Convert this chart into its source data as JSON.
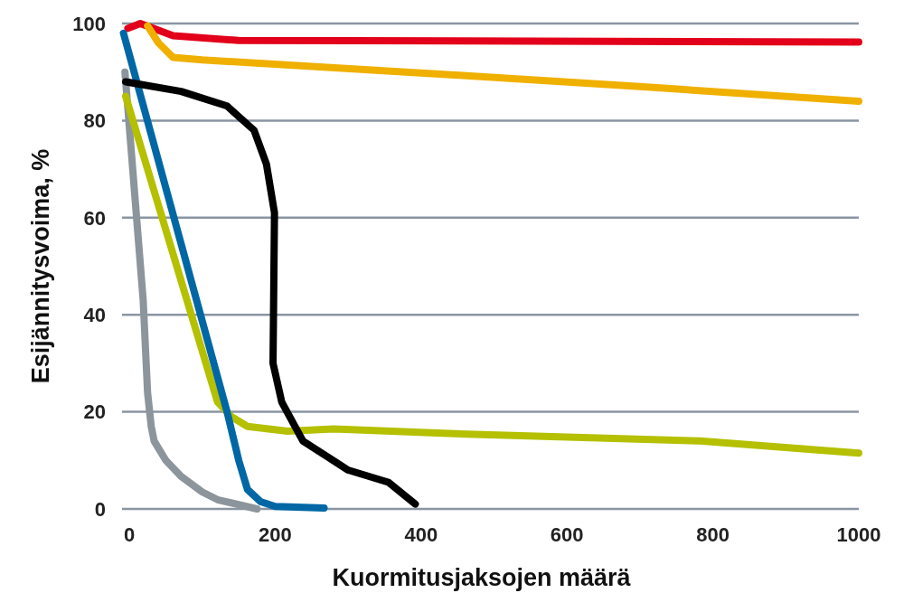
{
  "chart_data": {
    "type": "line",
    "xlabel": "Kuormitusjaksojen määrä",
    "ylabel": "Esijännitysvoima, %",
    "xlim": [
      -10,
      1000
    ],
    "xticks": [
      0,
      200,
      400,
      600,
      800,
      1000
    ],
    "ylim": [
      0,
      100
    ],
    "yticks": [
      0,
      20,
      40,
      60,
      80,
      100
    ],
    "grid": "y",
    "marker": "none",
    "line_style": "solid",
    "series": [
      {
        "color": "#e2001a",
        "x": [
          -2,
          15,
          60,
          150,
          1000
        ],
        "values": [
          99,
          100,
          97.5,
          96.5,
          96.2
        ]
      },
      {
        "color": "#f0b000",
        "x": [
          25,
          40,
          60,
          100,
          446,
          700,
          1000
        ],
        "values": [
          99.5,
          96,
          93,
          92.5,
          89.4,
          87,
          84
        ]
      },
      {
        "color": "#8c949c",
        "x": [
          -6,
          19,
          25,
          30,
          34,
          50,
          71,
          100,
          121,
          175
        ],
        "values": [
          90,
          43,
          24,
          17,
          14,
          10,
          6.7,
          3.5,
          1.9,
          0
        ]
      },
      {
        "color": "#b4c000",
        "x": [
          -5,
          121,
          140,
          162,
          217,
          280,
          446,
          782,
          1000
        ],
        "values": [
          85,
          22,
          19,
          17,
          16,
          16.5,
          15.5,
          14,
          11.5
        ]
      },
      {
        "color": "#0067a5",
        "x": [
          -8,
          134,
          150,
          162,
          180,
          200,
          267
        ],
        "values": [
          98,
          20,
          10,
          4,
          1.5,
          0.5,
          0.2
        ]
      },
      {
        "color": "#000000",
        "x": [
          -5,
          71,
          134,
          171,
          188,
          199,
          197,
          209,
          238,
          300,
          355,
          392
        ],
        "values": [
          88,
          86,
          83,
          78,
          71,
          61,
          30,
          22,
          14,
          8,
          5.5,
          1
        ]
      }
    ]
  }
}
